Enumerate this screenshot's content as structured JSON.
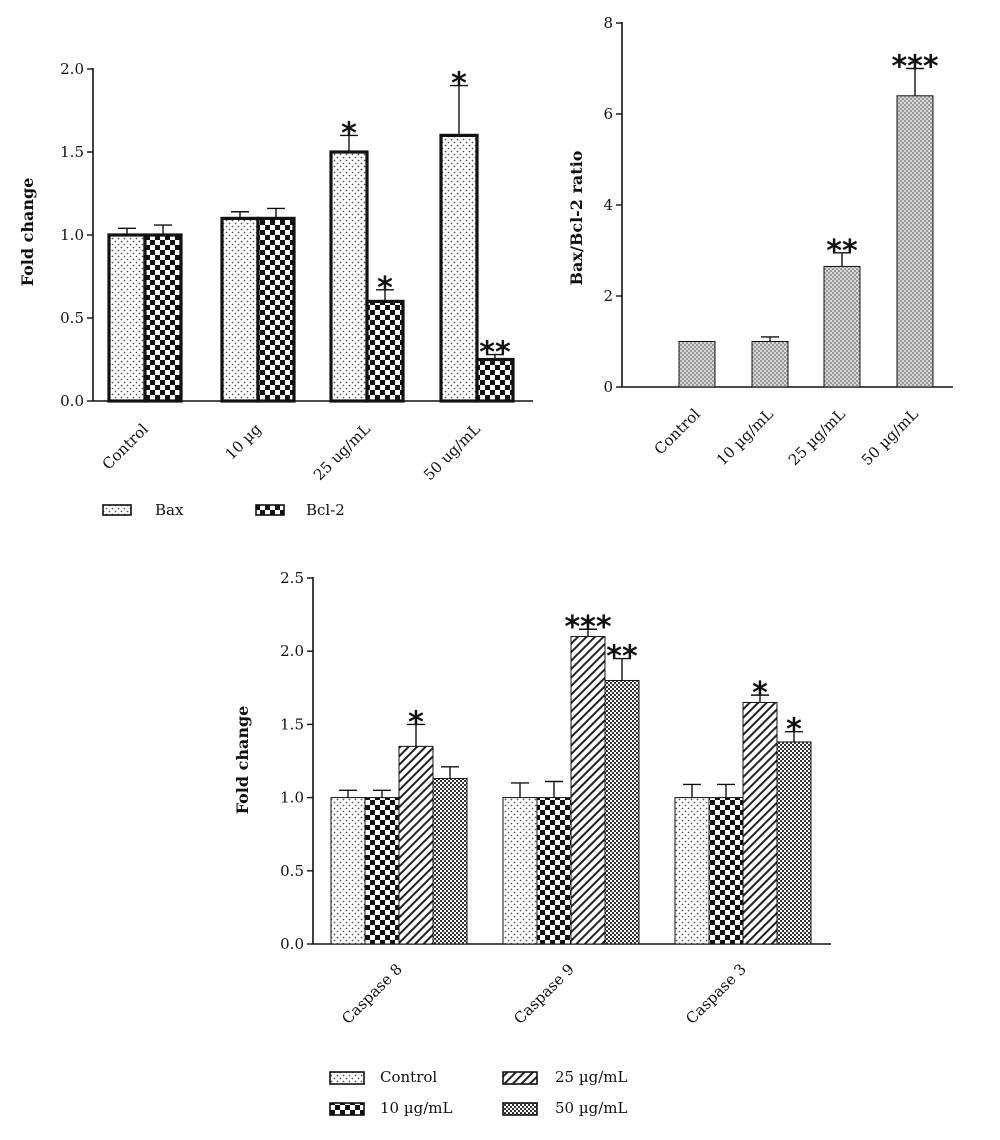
{
  "chart_data": [
    {
      "type": "bar",
      "ylabel": "Fold change",
      "categories": [
        "Control",
        "10 µg",
        "25 ug/mL",
        "50 ug/mL"
      ],
      "ylim": [
        0,
        2.0
      ],
      "yticks": [
        "0.0",
        "0.5",
        "1.0",
        "1.5",
        "2.0"
      ],
      "series": [
        {
          "name": "Bax",
          "values": [
            1.0,
            1.1,
            1.5,
            1.6
          ],
          "errors": [
            0.04,
            0.04,
            0.1,
            0.3
          ],
          "stars": [
            "",
            "",
            "*",
            "*"
          ],
          "pattern": "dots"
        },
        {
          "name": "Bcl-2",
          "values": [
            1.0,
            1.1,
            0.6,
            0.25
          ],
          "errors": [
            0.06,
            0.06,
            0.07,
            0.03
          ],
          "stars": [
            "",
            "",
            "*",
            "**"
          ],
          "pattern": "checker"
        }
      ],
      "legend_placement": "bottom"
    },
    {
      "type": "bar",
      "ylabel": "Bax/Bcl-2 ratio",
      "categories": [
        "Control",
        "10 µg/mL",
        "25 µg/mL",
        "50 µg/mL"
      ],
      "ylim": [
        0,
        8
      ],
      "yticks": [
        "0",
        "2",
        "4",
        "6",
        "8"
      ],
      "series": [
        {
          "name": "",
          "values": [
            1.0,
            1.0,
            2.65,
            6.4
          ],
          "errors": [
            0.0,
            0.1,
            0.3,
            0.6
          ],
          "stars": [
            "",
            "",
            "**",
            "***"
          ],
          "pattern": "grid"
        }
      ]
    },
    {
      "type": "bar",
      "ylabel": "Fold change",
      "categories": [
        "Caspase 8",
        "Caspase 9",
        "Caspase 3"
      ],
      "ylim": [
        0,
        2.5
      ],
      "yticks": [
        "0.0",
        "0.5",
        "1.0",
        "1.5",
        "2.0",
        "2.5"
      ],
      "series": [
        {
          "name": "Control",
          "values": [
            1.0,
            1.0,
            1.0
          ],
          "errors": [
            0.05,
            0.1,
            0.09
          ],
          "stars": [
            "",
            "",
            ""
          ],
          "pattern": "dots"
        },
        {
          "name": "10 µg/mL",
          "values": [
            1.0,
            1.0,
            1.0
          ],
          "errors": [
            0.05,
            0.11,
            0.09
          ],
          "stars": [
            "",
            "",
            ""
          ],
          "pattern": "checker"
        },
        {
          "name": "25 µg/mL",
          "values": [
            1.35,
            2.1,
            1.65
          ],
          "errors": [
            0.15,
            0.05,
            0.05
          ],
          "stars": [
            "*",
            "***",
            "*"
          ],
          "pattern": "diag"
        },
        {
          "name": "50 µg/mL",
          "values": [
            1.13,
            1.8,
            1.38
          ],
          "errors": [
            0.08,
            0.15,
            0.07
          ],
          "stars": [
            "",
            "**",
            "*"
          ],
          "pattern": "cross"
        }
      ],
      "legend_placement": "bottom"
    }
  ]
}
